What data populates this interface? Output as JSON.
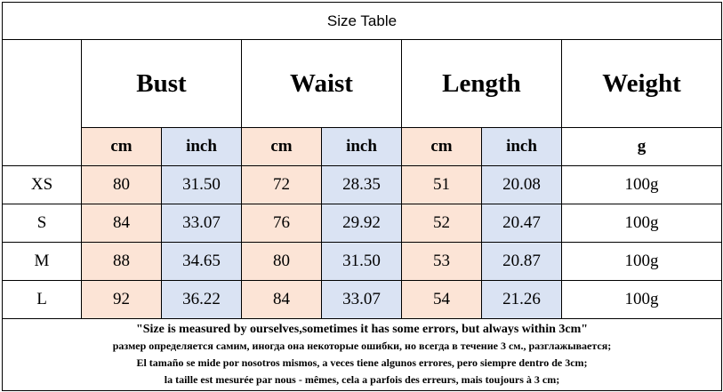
{
  "title": "Size Table",
  "headers": [
    "Bust",
    "Waist",
    "Length",
    "Weight"
  ],
  "units": [
    "cm",
    "inch",
    "cm",
    "inch",
    "cm",
    "inch",
    "g"
  ],
  "rows": [
    [
      "XS",
      "80",
      "31.50",
      "72",
      "28.35",
      "51",
      "20.08",
      "100g"
    ],
    [
      "S",
      "84",
      "33.07",
      "76",
      "29.92",
      "52",
      "20.47",
      "100g"
    ],
    [
      "M",
      "88",
      "34.65",
      "80",
      "31.50",
      "53",
      "20.87",
      "100g"
    ],
    [
      "L",
      "92",
      "36.22",
      "84",
      "33.07",
      "54",
      "21.26",
      "100g"
    ]
  ],
  "notes": [
    "\"Size is measured by ourselves,sometimes it has some errors, but always within 3cm\"",
    "размер определяется самим, иногда она некоторые ошибки, но всегда в течение 3 см., разглажывается;",
    "El tamaño se mide por nosotros mismos, a veces tiene algunos errores, pero siempre dentro de 3cm;",
    "la taille est mesurée par nous - mêmes, cela a parfois des erreurs, mais toujours à 3 cm;"
  ]
}
